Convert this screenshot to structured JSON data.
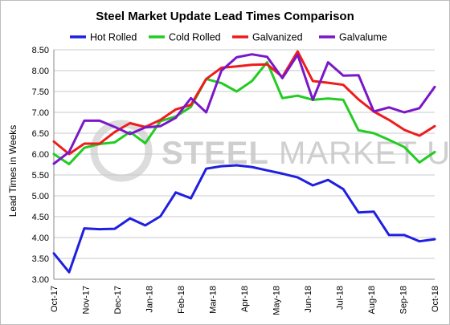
{
  "watermark": {
    "brand_bold": "STEEL",
    "brand_rest": " MARKET UPDATE"
  },
  "chart_data": {
    "type": "line",
    "title": "Steel Market Update Lead Times Comparison",
    "ylabel": "Lead Times in Weeks",
    "xlabel": "",
    "ylim": [
      3.0,
      8.5
    ],
    "yticks": [
      3.0,
      3.5,
      4.0,
      4.5,
      5.0,
      5.5,
      6.0,
      6.5,
      7.0,
      7.5,
      8.0,
      8.5
    ],
    "grid": true,
    "legend_position": "top",
    "x_tick_labels": [
      "Oct-17",
      "Nov-17",
      "Dec-17",
      "Jan-18",
      "Feb-18",
      "Mar-18",
      "Apr-18",
      "May-18",
      "Jun-18",
      "Jul-18",
      "Aug-18",
      "Sep-18",
      "Oct-18"
    ],
    "series": [
      {
        "name": "Hot Rolled",
        "color": "#1f1fe0",
        "values": [
          3.62,
          3.17,
          4.22,
          4.2,
          4.21,
          4.46,
          4.29,
          4.51,
          5.08,
          4.94,
          5.65,
          5.71,
          5.73,
          5.69,
          5.61,
          5.53,
          5.44,
          5.25,
          5.38,
          5.16,
          4.6,
          4.62,
          4.06,
          4.06,
          3.91,
          3.96
        ]
      },
      {
        "name": "Cold Rolled",
        "color": "#22cc22",
        "values": [
          6.0,
          5.76,
          6.15,
          6.24,
          6.28,
          6.53,
          6.26,
          6.79,
          6.9,
          7.13,
          7.8,
          7.7,
          7.5,
          7.75,
          8.2,
          7.34,
          7.4,
          7.3,
          7.33,
          7.3,
          6.57,
          6.5,
          6.34,
          6.17,
          5.8,
          6.05
        ]
      },
      {
        "name": "Galvanized",
        "color": "#ee1c1c",
        "values": [
          6.3,
          6.0,
          6.25,
          6.25,
          6.53,
          6.74,
          6.65,
          6.82,
          7.07,
          7.18,
          7.8,
          8.07,
          8.1,
          8.14,
          8.15,
          7.85,
          8.46,
          7.75,
          7.71,
          7.66,
          7.31,
          7.02,
          6.82,
          6.58,
          6.44,
          6.67
        ]
      },
      {
        "name": "Galvalume",
        "color": "#7a17c8",
        "values": [
          5.77,
          6.05,
          6.8,
          6.8,
          6.65,
          6.48,
          6.64,
          6.67,
          6.87,
          7.34,
          7.0,
          8.0,
          8.32,
          8.39,
          8.33,
          7.82,
          8.38,
          7.3,
          8.2,
          7.88,
          7.89,
          7.02,
          7.12,
          7.0,
          7.1,
          7.61
        ]
      }
    ]
  }
}
